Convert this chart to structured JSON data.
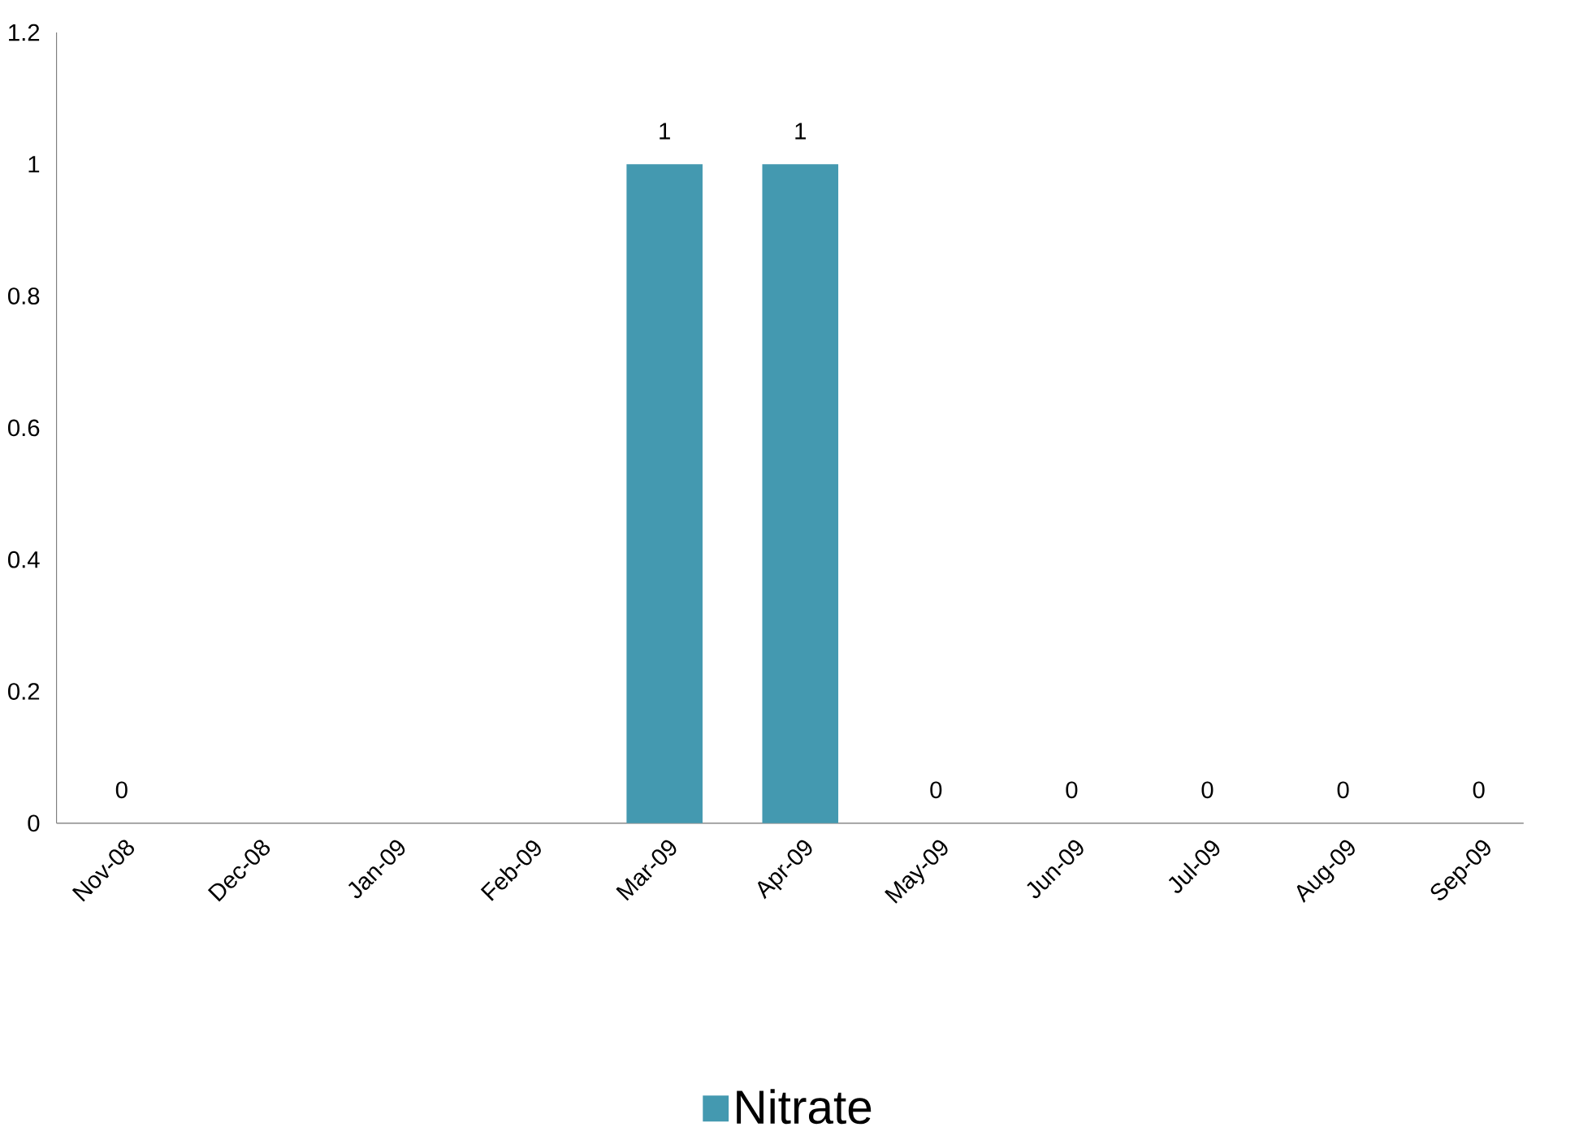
{
  "chart_data": {
    "type": "bar",
    "categories": [
      "Nov-08",
      "Dec-08",
      "Jan-09",
      "Feb-09",
      "Mar-09",
      "Apr-09",
      "May-09",
      "Jun-09",
      "Jul-09",
      "Aug-09",
      "Sep-09"
    ],
    "series": [
      {
        "name": "Nitrate",
        "color": "#4499b0",
        "values": [
          0,
          null,
          null,
          null,
          1,
          1,
          0,
          0,
          0,
          0,
          0
        ]
      }
    ],
    "ylim": [
      0,
      1.2
    ],
    "yticks": [
      0,
      0.2,
      0.4,
      0.6,
      0.8,
      1,
      1.2
    ],
    "data_labels": true,
    "legend": "bottom",
    "grid": false
  }
}
